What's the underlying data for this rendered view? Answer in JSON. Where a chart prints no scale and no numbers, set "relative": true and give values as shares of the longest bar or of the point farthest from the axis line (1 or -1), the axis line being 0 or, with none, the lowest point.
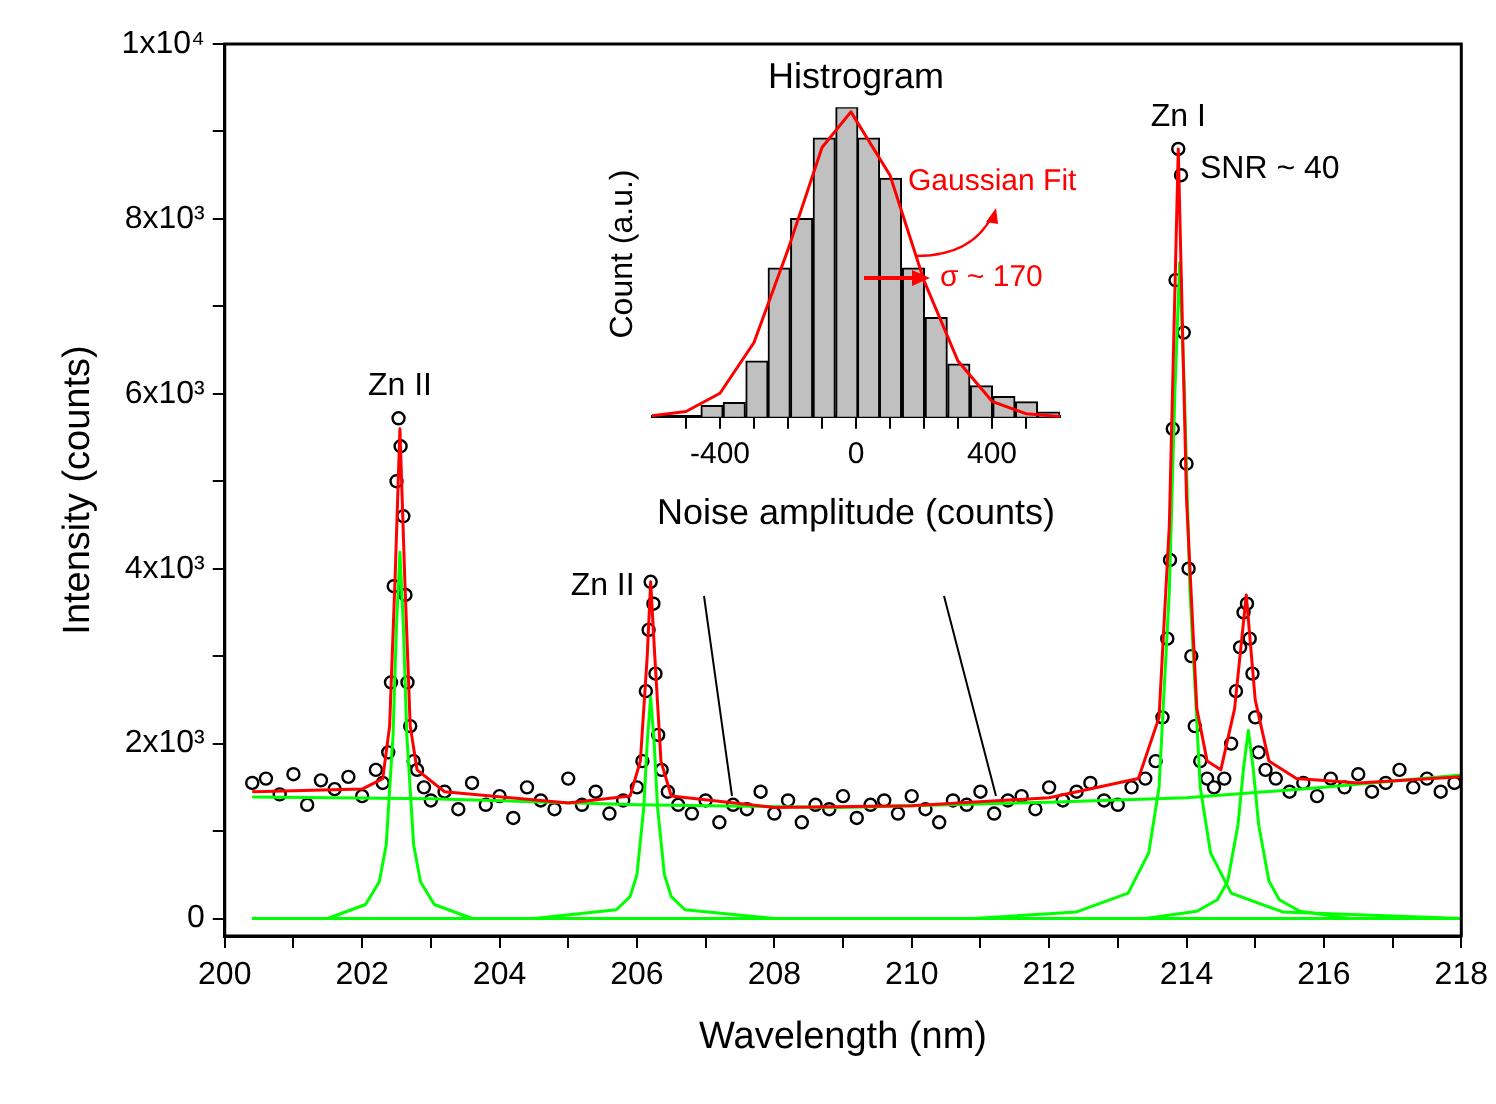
{
  "chart_data": [
    {
      "type": "scatter",
      "xlabel": "Wavelength (nm)",
      "ylabel": "Intensity (counts)",
      "xlim": [
        200,
        218
      ],
      "ylim": [
        -200,
        10000
      ],
      "xticks": [
        200,
        {
          "value": 201,
          "label": null
        },
        202,
        {
          "value": 203,
          "label": null
        },
        204,
        {
          "value": 205,
          "label": null
        },
        206,
        {
          "value": 207,
          "label": null
        },
        208,
        {
          "value": 209,
          "label": null
        },
        210,
        {
          "value": 211,
          "label": null
        },
        212,
        {
          "value": 213,
          "label": null
        },
        214,
        {
          "value": 215,
          "label": null
        },
        216,
        {
          "value": 217,
          "label": null
        },
        218
      ],
      "yticks": [
        0,
        {
          "value": 1000,
          "label": null
        },
        {
          "value": 2000,
          "label": "2x10³"
        },
        {
          "value": 3000,
          "label": null
        },
        {
          "value": 4000,
          "label": "4x10³"
        },
        {
          "value": 5000,
          "label": null
        },
        {
          "value": 6000,
          "label": "6x10³"
        },
        {
          "value": 7000,
          "label": null
        },
        {
          "value": 8000,
          "label": "8x10³"
        },
        {
          "value": 9000,
          "label": null
        },
        {
          "value": 10000,
          "label": "1x10⁴"
        }
      ],
      "annotations": [
        {
          "text": "Zn II",
          "x": 202.55,
          "y": 5720
        },
        {
          "text": "Zn II",
          "x": 206.2,
          "y": 3850
        },
        {
          "text": "Zn I",
          "x": 213.88,
          "y": 8800
        },
        "SNR ~ 40"
      ],
      "series": [
        {
          "marker": "circle",
          "color": "#000000",
          "x": [
            200.4,
            200.6,
            200.8,
            201.0,
            201.2,
            201.4,
            201.6,
            201.8,
            202.0,
            202.2,
            202.3,
            202.38,
            202.42,
            202.46,
            202.5,
            202.53,
            202.56,
            202.6,
            202.63,
            202.66,
            202.7,
            202.75,
            202.8,
            202.9,
            203.0,
            203.2,
            203.4,
            203.6,
            203.8,
            204.0,
            204.2,
            204.4,
            204.6,
            204.8,
            205.0,
            205.2,
            205.4,
            205.6,
            205.8,
            206.0,
            206.08,
            206.13,
            206.17,
            206.2,
            206.24,
            206.27,
            206.31,
            206.36,
            206.45,
            206.6,
            206.8,
            207.0,
            207.2,
            207.4,
            207.6,
            207.8,
            208.0,
            208.2,
            208.4,
            208.6,
            208.8,
            209.0,
            209.2,
            209.4,
            209.6,
            209.8,
            210.0,
            210.2,
            210.4,
            210.6,
            210.8,
            211.0,
            211.2,
            211.4,
            211.6,
            211.8,
            212.0,
            212.2,
            212.4,
            212.6,
            212.8,
            213.0,
            213.2,
            213.4,
            213.55,
            213.65,
            213.72,
            213.76,
            213.8,
            213.84,
            213.88,
            213.92,
            213.96,
            214.0,
            214.03,
            214.07,
            214.12,
            214.2,
            214.3,
            214.4,
            214.55,
            214.65,
            214.72,
            214.78,
            214.83,
            214.88,
            214.92,
            214.96,
            215.0,
            215.05,
            215.15,
            215.3,
            215.5,
            215.7,
            215.9,
            216.1,
            216.3,
            216.5,
            216.7,
            216.9,
            217.1,
            217.3,
            217.5,
            217.7,
            217.9
          ],
          "values": [
            1550,
            1600,
            1420,
            1650,
            1300,
            1580,
            1480,
            1620,
            1400,
            1700,
            1550,
            1900,
            2700,
            3800,
            5000,
            5720,
            5400,
            4600,
            3700,
            2700,
            2200,
            1800,
            1700,
            1500,
            1350,
            1450,
            1250,
            1550,
            1300,
            1400,
            1150,
            1500,
            1350,
            1250,
            1600,
            1300,
            1450,
            1200,
            1350,
            1500,
            1800,
            2600,
            3300,
            3850,
            3600,
            2800,
            2100,
            1700,
            1450,
            1300,
            1200,
            1350,
            1100,
            1300,
            1250,
            1450,
            1200,
            1350,
            1100,
            1300,
            1250,
            1400,
            1150,
            1300,
            1350,
            1200,
            1400,
            1250,
            1100,
            1350,
            1300,
            1450,
            1200,
            1350,
            1400,
            1250,
            1500,
            1350,
            1450,
            1550,
            1350,
            1300,
            1500,
            1600,
            1800,
            2300,
            3200,
            4100,
            5600,
            7300,
            8800,
            8500,
            6700,
            5200,
            4000,
            3000,
            2200,
            1800,
            1600,
            1500,
            1600,
            2000,
            2600,
            3100,
            3500,
            3600,
            3200,
            2800,
            2300,
            1900,
            1700,
            1600,
            1450,
            1550,
            1400,
            1600,
            1500,
            1650,
            1450,
            1550,
            1700,
            1500,
            1600,
            1450,
            1550
          ]
        },
        {
          "type": "line",
          "color": "#ff0000",
          "x": [
            200.4,
            202.0,
            202.3,
            202.4,
            202.48,
            202.55,
            202.62,
            202.7,
            202.8,
            203.2,
            205.0,
            205.9,
            206.05,
            206.15,
            206.2,
            206.26,
            206.35,
            206.5,
            208,
            210,
            212,
            213.3,
            213.6,
            213.75,
            213.88,
            214.0,
            214.15,
            214.3,
            214.5,
            214.7,
            214.87,
            215.0,
            215.2,
            215.6,
            216.5,
            218
          ],
          "values": [
            1450,
            1480,
            1600,
            2200,
            3900,
            5600,
            3900,
            2200,
            1700,
            1450,
            1320,
            1400,
            1800,
            3000,
            3850,
            3000,
            1800,
            1400,
            1270,
            1290,
            1380,
            1600,
            2300,
            4500,
            8800,
            4800,
            2400,
            1800,
            1700,
            2400,
            3700,
            2500,
            1800,
            1600,
            1550,
            1620
          ]
        },
        {
          "type": "line",
          "color": "#00ff00",
          "x": [
            200.4,
            203,
            206,
            209,
            212,
            214,
            216,
            218
          ],
          "values": [
            1390,
            1370,
            1300,
            1270,
            1330,
            1380,
            1500,
            1640
          ]
        },
        {
          "type": "line",
          "color": "#00ff00",
          "x": [
            200.4,
            201.5,
            202.05,
            202.25,
            202.35,
            202.45,
            202.5,
            202.55,
            202.6,
            202.65,
            202.75,
            202.85,
            203.05,
            203.6,
            205,
            218
          ],
          "values": [
            0,
            0,
            160,
            420,
            840,
            2100,
            3350,
            4190,
            3350,
            2100,
            840,
            420,
            160,
            0,
            0,
            0
          ]
        },
        {
          "type": "line",
          "color": "#00ff00",
          "x": [
            200.4,
            204.5,
            205.7,
            205.9,
            206.0,
            206.1,
            206.15,
            206.2,
            206.25,
            206.3,
            206.4,
            206.5,
            206.7,
            208,
            218
          ],
          "values": [
            0,
            0,
            100,
            250,
            500,
            1270,
            2020,
            2530,
            2020,
            1270,
            500,
            250,
            100,
            0,
            0
          ]
        },
        {
          "type": "line",
          "color": "#00ff00",
          "x": [
            200.4,
            210.9,
            212.4,
            213.15,
            213.45,
            213.6,
            213.75,
            213.83,
            213.9,
            213.97,
            214.05,
            214.2,
            214.35,
            214.65,
            215.4,
            218
          ],
          "values": [
            0,
            0,
            75,
            290,
            750,
            1500,
            3750,
            6000,
            7500,
            6000,
            3750,
            1500,
            750,
            290,
            75,
            0
          ]
        },
        {
          "type": "line",
          "color": "#00ff00",
          "x": [
            200.4,
            213.4,
            214.15,
            214.45,
            214.6,
            214.75,
            214.83,
            214.9,
            214.97,
            215.05,
            215.2,
            215.35,
            215.65,
            216.4,
            218
          ],
          "values": [
            0,
            0,
            83,
            215,
            430,
            1075,
            1720,
            2150,
            1720,
            1075,
            430,
            215,
            83,
            0,
            0
          ]
        }
      ]
    },
    {
      "type": "histogram",
      "title": "Histrogram",
      "xlabel": "Noise amplitude (counts)",
      "ylabel": "Count (a.u.)",
      "relative": true,
      "xlim": [
        -600,
        600
      ],
      "xticks": [
        {
          "value": -500,
          "label": null
        },
        -400,
        {
          "value": -300,
          "label": null
        },
        {
          "value": -200,
          "label": null
        },
        {
          "value": -100,
          "label": null
        },
        0,
        {
          "value": 100,
          "label": null
        },
        {
          "value": 200,
          "label": null
        },
        {
          "value": 300,
          "label": null
        },
        400,
        {
          "value": 500,
          "label": null
        }
      ],
      "annotations": [
        "Gaussian Fit",
        "σ ~ 170"
      ],
      "series": [
        {
          "color": "#c0c0c0",
          "bins": [
            -455,
            -392,
            -324,
            -259,
            -193,
            -127,
            -60,
            6,
            68,
            135,
            203,
            269,
            336,
            402,
            468,
            535,
            599
          ],
          "values": [
            0.036,
            0.046,
            0.18,
            0.48,
            0.64,
            0.9,
            1,
            0.9,
            0.77,
            0.48,
            0.32,
            0.17,
            0.1,
            0.065,
            0.048,
            0.015
          ]
        },
        {
          "type": "line",
          "color": "#ff0000",
          "x": [
            -600,
            -500,
            -400,
            -300,
            -200,
            -100,
            -15,
            100,
            200,
            300,
            400,
            500,
            600
          ],
          "values": [
            0.003,
            0.017,
            0.076,
            0.24,
            0.54,
            0.87,
            0.985,
            0.78,
            0.44,
            0.18,
            0.05,
            0.01,
            0.001
          ]
        }
      ]
    }
  ]
}
